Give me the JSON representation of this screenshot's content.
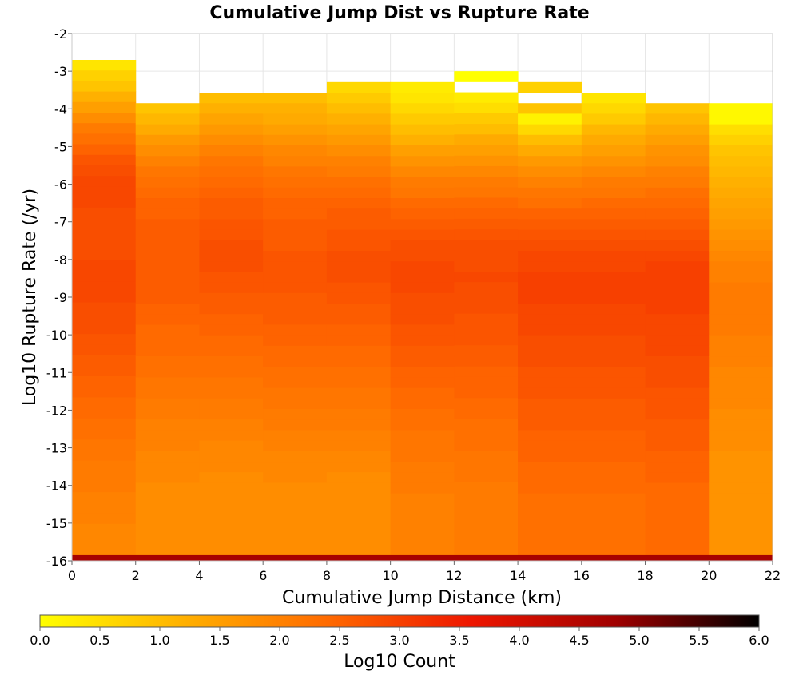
{
  "chart_data": {
    "type": "heatmap",
    "title": "Cumulative Jump Dist vs Rupture Rate",
    "xlabel": "Cumulative Jump Distance (km)",
    "ylabel": "Log10 Rupture Rate (/yr)",
    "xlim": [
      0,
      22
    ],
    "ylim": [
      -16,
      -2
    ],
    "x_ticks": [
      "0",
      "2",
      "4",
      "6",
      "8",
      "10",
      "12",
      "14",
      "16",
      "18",
      "20",
      "22"
    ],
    "y_ticks": [
      "-2",
      "-3",
      "-4",
      "-5",
      "-6",
      "-7",
      "-8",
      "-9",
      "-10",
      "-11",
      "-12",
      "-13",
      "-14",
      "-15",
      "-16"
    ],
    "x_bin_edges": [
      0,
      2,
      4,
      6,
      8,
      10,
      12,
      14,
      16,
      18,
      20,
      22
    ],
    "y_bin_size": 0.28,
    "grid": true,
    "legend": {
      "label": "Log10 Count",
      "placement": "bottom",
      "range": [
        0,
        6
      ],
      "ticks": [
        "0.0",
        "0.5",
        "1.0",
        "1.5",
        "2.0",
        "2.5",
        "3.0",
        "3.5",
        "4.0",
        "4.5",
        "5.0",
        "5.5",
        "6.0"
      ],
      "colors": [
        "#ffff00",
        "#ffb000",
        "#ff6a00",
        "#ee1600",
        "#a00000",
        "#000000"
      ]
    },
    "columns": [
      {
        "x_range": [
          0,
          2
        ],
        "y_top": -2.7,
        "values": [
          0.4,
          0.7,
          0.9,
          1.2,
          1.5,
          1.8,
          2.1,
          2.3,
          2.5,
          2.7,
          2.8,
          2.9,
          2.9,
          2.9,
          2.8,
          2.8,
          2.8,
          2.8,
          2.8,
          2.9,
          2.9,
          2.9,
          2.9,
          2.8,
          2.8,
          2.8,
          2.7,
          2.7,
          2.6,
          2.6,
          2.5,
          2.5,
          2.4,
          2.4,
          2.3,
          2.3,
          2.2,
          2.2,
          2.1,
          2.1,
          2.1,
          2.0,
          2.0,
          2.0,
          1.9,
          1.9
        ]
      },
      {
        "x_range": [
          2,
          4
        ],
        "y_top": -3.85,
        "values": [
          0.9,
          1.1,
          1.3,
          1.6,
          1.8,
          2.0,
          2.2,
          2.3,
          2.4,
          2.5,
          2.5,
          2.6,
          2.6,
          2.6,
          2.6,
          2.6,
          2.6,
          2.6,
          2.6,
          2.5,
          2.5,
          2.4,
          2.4,
          2.4,
          2.3,
          2.3,
          2.2,
          2.2,
          2.1,
          2.1,
          2.0,
          2.0,
          2.0,
          1.9,
          1.9,
          1.9,
          1.8,
          1.8
        ]
      },
      {
        "x_range": [
          4,
          6
        ],
        "y_top": -3.57,
        "values": [
          1.0,
          1.2,
          1.4,
          1.6,
          1.8,
          2.0,
          2.2,
          2.3,
          2.4,
          2.5,
          2.6,
          2.6,
          2.7,
          2.7,
          2.8,
          2.8,
          2.8,
          2.7,
          2.7,
          2.6,
          2.6,
          2.5,
          2.5,
          2.4,
          2.4,
          2.3,
          2.3,
          2.2,
          2.2,
          2.1,
          2.1,
          2.0,
          2.0,
          1.9,
          1.9,
          1.9,
          1.8,
          1.8,
          1.8
        ]
      },
      {
        "x_range": [
          6,
          8
        ],
        "y_top": -3.57,
        "values": [
          1.0,
          1.2,
          1.3,
          1.5,
          1.7,
          1.9,
          2.0,
          2.2,
          2.3,
          2.4,
          2.5,
          2.5,
          2.6,
          2.6,
          2.6,
          2.7,
          2.7,
          2.7,
          2.7,
          2.6,
          2.6,
          2.6,
          2.5,
          2.5,
          2.4,
          2.4,
          2.3,
          2.3,
          2.2,
          2.2,
          2.1,
          2.1,
          2.0,
          2.0,
          1.9,
          1.9,
          1.9,
          1.8,
          1.8
        ]
      },
      {
        "x_range": [
          8,
          10
        ],
        "y_top": -3.29,
        "values": [
          0.6,
          0.8,
          1.0,
          1.2,
          1.4,
          1.6,
          1.8,
          2.0,
          2.1,
          2.3,
          2.4,
          2.5,
          2.6,
          2.6,
          2.7,
          2.7,
          2.8,
          2.8,
          2.8,
          2.7,
          2.7,
          2.6,
          2.6,
          2.5,
          2.5,
          2.4,
          2.4,
          2.3,
          2.3,
          2.2,
          2.2,
          2.1,
          2.1,
          2.0,
          2.0,
          1.9,
          1.9,
          1.8,
          1.8,
          1.8
        ]
      },
      {
        "x_range": [
          10,
          12
        ],
        "y_top": -3.29,
        "values": [
          0.3,
          0.4,
          0.6,
          0.8,
          1.0,
          1.2,
          1.5,
          1.7,
          1.9,
          2.1,
          2.2,
          2.4,
          2.5,
          2.6,
          2.7,
          2.8,
          2.8,
          2.9,
          2.9,
          2.9,
          2.8,
          2.8,
          2.8,
          2.7,
          2.7,
          2.6,
          2.6,
          2.5,
          2.5,
          2.4,
          2.4,
          2.3,
          2.3,
          2.2,
          2.2,
          2.2,
          2.1,
          2.1,
          2.1,
          2.0
        ]
      },
      {
        "x_range": [
          12,
          14
        ],
        "y_top": -3.0,
        "values": [
          0.0,
          null,
          0.3,
          0.5,
          0.8,
          1.0,
          1.3,
          1.5,
          1.7,
          1.9,
          2.1,
          2.2,
          2.4,
          2.5,
          2.6,
          2.7,
          2.8,
          2.8,
          2.8,
          2.9,
          2.8,
          2.8,
          2.8,
          2.7,
          2.7,
          2.7,
          2.6,
          2.6,
          2.5,
          2.5,
          2.5,
          2.4,
          2.4,
          2.3,
          2.3,
          2.3,
          2.2,
          2.2,
          2.2,
          2.1,
          2.1
        ]
      },
      {
        "x_range": [
          14,
          16
        ],
        "y_top": -3.29,
        "values": [
          0.7,
          null,
          0.9,
          0.2,
          0.6,
          1.0,
          1.3,
          1.6,
          1.8,
          2.0,
          2.2,
          2.3,
          2.5,
          2.6,
          2.7,
          2.8,
          2.9,
          2.9,
          3.0,
          3.0,
          3.0,
          2.9,
          2.9,
          2.9,
          2.8,
          2.8,
          2.8,
          2.7,
          2.7,
          2.7,
          2.6,
          2.6,
          2.6,
          2.5,
          2.5,
          2.5,
          2.4,
          2.4,
          2.4,
          2.3
        ]
      },
      {
        "x_range": [
          16,
          18
        ],
        "y_top": -3.57,
        "values": [
          0.4,
          0.6,
          0.8,
          1.1,
          1.3,
          1.5,
          1.7,
          1.9,
          2.1,
          2.2,
          2.4,
          2.5,
          2.6,
          2.7,
          2.8,
          2.9,
          2.9,
          3.0,
          3.0,
          3.0,
          2.9,
          2.9,
          2.9,
          2.8,
          2.8,
          2.8,
          2.7,
          2.7,
          2.7,
          2.6,
          2.6,
          2.6,
          2.5,
          2.5,
          2.5,
          2.4,
          2.4,
          2.4,
          2.3
        ]
      },
      {
        "x_range": [
          18,
          20
        ],
        "y_top": -3.85,
        "values": [
          0.9,
          1.1,
          1.3,
          1.5,
          1.7,
          1.8,
          2.0,
          2.1,
          2.3,
          2.4,
          2.5,
          2.6,
          2.7,
          2.8,
          2.9,
          3.0,
          3.0,
          3.0,
          3.0,
          3.0,
          2.9,
          2.9,
          2.9,
          2.9,
          2.8,
          2.8,
          2.8,
          2.7,
          2.7,
          2.7,
          2.6,
          2.6,
          2.6,
          2.5,
          2.5,
          2.5,
          2.4,
          2.4
        ]
      },
      {
        "x_range": [
          20,
          22
        ],
        "y_top": -3.85,
        "values": [
          0.1,
          0.1,
          0.5,
          0.7,
          0.9,
          1.0,
          1.1,
          1.2,
          1.3,
          1.4,
          1.5,
          1.6,
          1.7,
          1.8,
          1.9,
          2.0,
          2.0,
          2.1,
          2.1,
          2.1,
          2.1,
          2.1,
          2.0,
          2.0,
          2.0,
          1.9,
          1.9,
          1.9,
          1.9,
          1.8,
          1.8,
          1.8,
          1.8,
          1.7,
          1.7,
          1.7,
          1.7,
          1.7
        ]
      }
    ],
    "bottom_row": {
      "y_range": [
        -16,
        -15.85
      ],
      "value": 4.7
    }
  }
}
